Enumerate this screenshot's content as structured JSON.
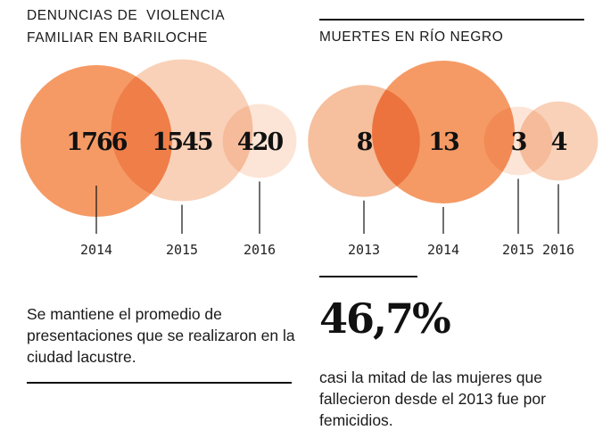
{
  "left_panel": {
    "title_line1": "DENUNCIAS DE  VIOLENCIA",
    "title_line2": "FAMILIAR EN BARILOCHE",
    "description": "Se mantiene el promedio de presentaciones que se realizaron en la ciudad lacustre."
  },
  "right_panel": {
    "title": "MUERTES EN RÍO NEGRO",
    "big_stat": "46,7%",
    "description": "casi la mitad de las mujeres que fallecieron desde el 2013 fue por femicidios."
  },
  "colors": {
    "strong": "#f3884a",
    "medium": "#f5b48c",
    "light": "#f8c9ab",
    "pale": "#fbe0cf",
    "text": "#111111"
  },
  "chart_data": [
    {
      "type": "bubble",
      "title": "DENUNCIAS DE VIOLENCIA FAMILIAR EN BARILOCHE",
      "categories": [
        "2014",
        "2015",
        "2016"
      ],
      "values": [
        1766,
        1545,
        420
      ],
      "value_labels": [
        "1766",
        "1545",
        "420"
      ],
      "shades": [
        "strong",
        "light",
        "pale"
      ]
    },
    {
      "type": "bubble",
      "title": "MUERTES EN RÍO NEGRO",
      "categories": [
        "2013",
        "2014",
        "2015",
        "2016"
      ],
      "values": [
        8,
        13,
        3,
        4
      ],
      "value_labels": [
        "8",
        "13",
        "3",
        "4"
      ],
      "shades": [
        "medium",
        "strong",
        "pale",
        "light"
      ]
    }
  ]
}
